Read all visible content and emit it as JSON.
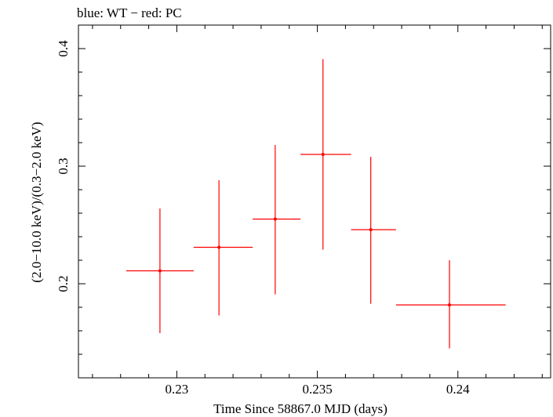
{
  "chart_data": {
    "type": "scatter",
    "title": "blue: WT − red: PC",
    "xlabel": "Time Since 58867.0 MJD (days)",
    "ylabel": "(2.0−10.0 keV)/(0.3−2.0 keV)",
    "xlim": [
      0.2265,
      0.2433
    ],
    "ylim": [
      0.12,
      0.42
    ],
    "xticks": [
      0.23,
      0.235,
      0.24
    ],
    "xtick_labels": [
      "0.23",
      "0.235",
      "0.24"
    ],
    "yticks": [
      0.2,
      0.3,
      0.4
    ],
    "ytick_labels": [
      "0.2",
      "0.3",
      "0.4"
    ],
    "grid": false,
    "series": [
      {
        "name": "PC",
        "color": "#ff0000",
        "points": [
          {
            "x": 0.2294,
            "y": 0.211,
            "xlo": 0.2282,
            "xhi": 0.2306,
            "ylo": 0.158,
            "yhi": 0.264
          },
          {
            "x": 0.2315,
            "y": 0.231,
            "xlo": 0.2306,
            "xhi": 0.2327,
            "ylo": 0.173,
            "yhi": 0.288
          },
          {
            "x": 0.2335,
            "y": 0.255,
            "xlo": 0.2327,
            "xhi": 0.2344,
            "ylo": 0.191,
            "yhi": 0.318
          },
          {
            "x": 0.2352,
            "y": 0.31,
            "xlo": 0.2344,
            "xhi": 0.2362,
            "ylo": 0.229,
            "yhi": 0.391
          },
          {
            "x": 0.2369,
            "y": 0.246,
            "xlo": 0.2362,
            "xhi": 0.2378,
            "ylo": 0.183,
            "yhi": 0.308
          },
          {
            "x": 0.2397,
            "y": 0.182,
            "xlo": 0.2378,
            "xhi": 0.2417,
            "ylo": 0.145,
            "yhi": 0.22
          }
        ]
      }
    ]
  }
}
